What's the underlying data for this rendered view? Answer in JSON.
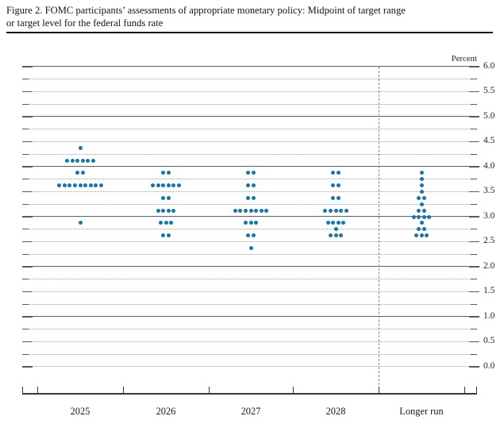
{
  "figure": {
    "title_line1": "Figure 2. FOMC participants’ assessments of appropriate monetary policy: Midpoint of target range",
    "title_line2": "or target level for the federal funds rate"
  },
  "chart_data": {
    "type": "scatter",
    "subtype": "fomc-dot-plot",
    "title": "Figure 2. FOMC participants’ assessments of appropriate monetary policy: Midpoint of target range or target level for the federal funds rate",
    "ylabel": "Percent",
    "ylim": [
      0.0,
      6.0
    ],
    "ytick_step": 0.5,
    "gridline_step": 0.25,
    "yticks": [
      "6.0",
      "5.5",
      "5.0",
      "4.5",
      "4.0",
      "3.5",
      "3.0",
      "2.5",
      "2.0",
      "1.5",
      "1.0",
      "0.5",
      "0.0"
    ],
    "grid": true,
    "legend_position": "none",
    "categories": [
      "2025",
      "2026",
      "2027",
      "2028",
      "Longer run"
    ],
    "separator_before_category": "Longer run",
    "dot_color": "#1c74a6",
    "series": [
      {
        "category": "2025",
        "dots": [
          {
            "value": 4.375,
            "count": 1
          },
          {
            "value": 4.125,
            "count": 6
          },
          {
            "value": 3.875,
            "count": 2
          },
          {
            "value": 3.625,
            "count": 9
          },
          {
            "value": 2.875,
            "count": 1
          }
        ]
      },
      {
        "category": "2026",
        "dots": [
          {
            "value": 3.875,
            "count": 2
          },
          {
            "value": 3.625,
            "count": 6
          },
          {
            "value": 3.375,
            "count": 2
          },
          {
            "value": 3.125,
            "count": 4
          },
          {
            "value": 2.875,
            "count": 3
          },
          {
            "value": 2.625,
            "count": 2
          }
        ]
      },
      {
        "category": "2027",
        "dots": [
          {
            "value": 3.875,
            "count": 2
          },
          {
            "value": 3.625,
            "count": 2
          },
          {
            "value": 3.375,
            "count": 2
          },
          {
            "value": 3.125,
            "count": 7
          },
          {
            "value": 2.875,
            "count": 3
          },
          {
            "value": 2.625,
            "count": 2
          },
          {
            "value": 2.375,
            "count": 1
          }
        ]
      },
      {
        "category": "2028",
        "dots": [
          {
            "value": 3.875,
            "count": 2
          },
          {
            "value": 3.625,
            "count": 2
          },
          {
            "value": 3.375,
            "count": 2
          },
          {
            "value": 3.125,
            "count": 5
          },
          {
            "value": 2.875,
            "count": 4
          },
          {
            "value": 2.75,
            "count": 1
          },
          {
            "value": 2.625,
            "count": 3
          }
        ]
      },
      {
        "category": "Longer run",
        "dots": [
          {
            "value": 3.875,
            "count": 1
          },
          {
            "value": 3.75,
            "count": 1
          },
          {
            "value": 3.625,
            "count": 1
          },
          {
            "value": 3.5,
            "count": 1
          },
          {
            "value": 3.375,
            "count": 2
          },
          {
            "value": 3.25,
            "count": 1
          },
          {
            "value": 3.125,
            "count": 2
          },
          {
            "value": 3.0,
            "count": 4
          },
          {
            "value": 2.875,
            "count": 1
          },
          {
            "value": 2.75,
            "count": 2
          },
          {
            "value": 2.625,
            "count": 3
          }
        ]
      }
    ]
  }
}
